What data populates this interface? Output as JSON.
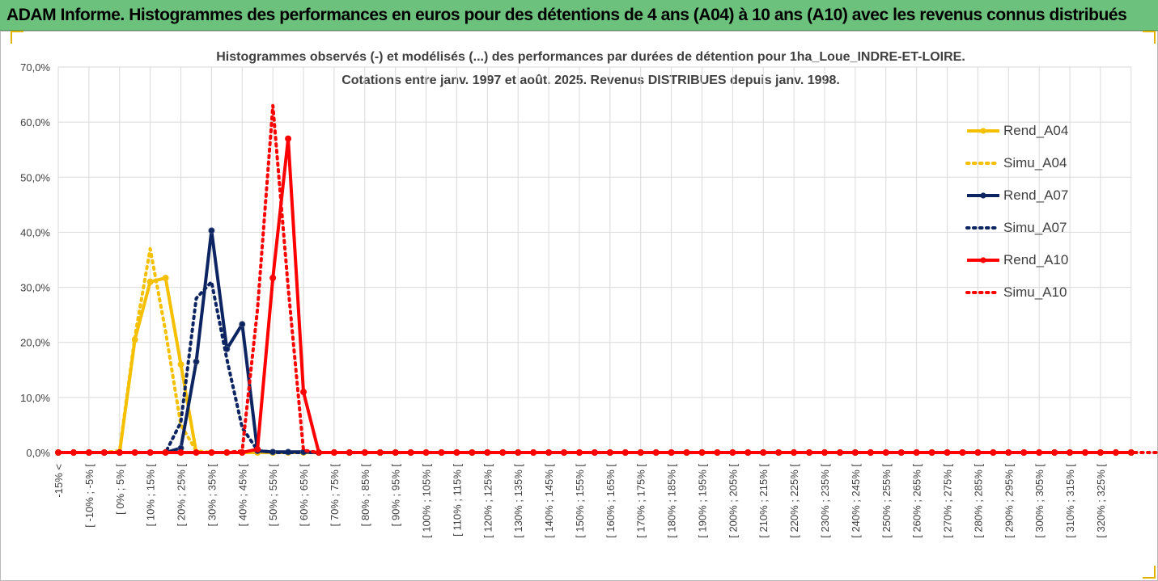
{
  "banner": {
    "title": "ADAM Informe. Histogrammes des performances en euros pour des détentions de 4 ans (A04) à 10 ans (A10) avec les revenus connus distribués"
  },
  "colors": {
    "banner_bg": "#6cc27c",
    "yellow": "#f5c000",
    "navy": "#0c2461",
    "red": "#ff0000",
    "grid": "#d9d9d9",
    "text": "#404040"
  },
  "chart_data": {
    "type": "line",
    "title_line1": "Histogrammes observés (-) et modélisés (...) des performances par durées de détention pour 1ha_Loue_INDRE-ET-LOIRE.",
    "title_line2": "Cotations entre janv. 1997 et août. 2025. Revenus DISTRIBUES depuis janv. 1998.",
    "xlabel": "",
    "ylabel": "",
    "ylim": [
      0,
      70
    ],
    "yticks": [
      "0,0%",
      "10,0%",
      "20,0%",
      "30,0%",
      "40,0%",
      "50,0%",
      "60,0%",
      "70,0%"
    ],
    "grid": true,
    "legend_position": "right",
    "x_tick_labels": [
      "-15% <",
      "[ -10% ; -5% [",
      "[ 0% ; 5% [",
      "[ 10% ; 15% [",
      "[ 20% ; 25% [",
      "[ 30% ; 35% [",
      "[ 40% ; 45% [",
      "[ 50% ; 55% [",
      "[ 60% ; 65% [",
      "[ 70% ; 75% [",
      "[ 80% ; 85% [",
      "[ 90% ; 95% [",
      "[ 100% ; 105% [",
      "[ 110% ; 115% [",
      "[ 120% ; 125% [",
      "[ 130% ; 135% [",
      "[ 140% ; 145% [",
      "[ 150% ; 155% [",
      "[ 160% ; 165% [",
      "[ 170% ; 175% [",
      "[ 180% ; 185% [",
      "[ 190% ; 195% [",
      "[ 200% ; 205% [",
      "[ 210% ; 215% [",
      "[ 220% ; 225% [",
      "[ 230% ; 235% [",
      "[ 240% ; 245% [",
      "[ 250% ; 255% [",
      "[ 260% ; 265% [",
      "[ 270% ; 275% [",
      "[ 280% ; 285% [",
      "[ 290% ; 295% [",
      "[ 300% ; 305% [",
      "[ 310% ; 315% [",
      "[ 320% ; 325% ["
    ],
    "series": [
      {
        "name": "Rend_A04",
        "color": "#f5c000",
        "dash": "solid",
        "markers": true,
        "values": [
          0,
          0,
          0,
          0,
          0,
          20.5,
          31,
          31.7,
          16,
          0,
          0,
          0,
          0,
          0,
          0,
          0,
          0,
          0,
          0,
          0,
          0,
          0,
          0,
          0,
          0,
          0,
          0,
          0,
          0,
          0,
          0,
          0,
          0,
          0,
          0,
          0,
          0,
          0,
          0,
          0,
          0,
          0,
          0,
          0,
          0,
          0,
          0,
          0,
          0,
          0,
          0,
          0,
          0,
          0,
          0,
          0,
          0,
          0,
          0,
          0,
          0,
          0,
          0,
          0,
          0,
          0,
          0,
          0,
          0,
          0,
          0
        ]
      },
      {
        "name": "Simu_A04",
        "color": "#f5c000",
        "dash": "dot",
        "markers": false,
        "values": [
          0,
          0,
          0,
          0,
          0.3,
          21,
          37,
          22,
          5,
          0.3,
          0,
          0,
          0,
          0,
          0,
          0,
          0,
          0,
          0,
          0,
          0,
          0,
          0,
          0,
          0,
          0,
          0,
          0,
          0,
          0,
          0,
          0,
          0,
          0,
          0,
          0,
          0,
          0,
          0,
          0,
          0,
          0,
          0,
          0,
          0,
          0,
          0,
          0,
          0,
          0,
          0,
          0,
          0,
          0,
          0,
          0,
          0,
          0,
          0,
          0,
          0,
          0,
          0,
          0,
          0,
          0,
          0,
          0,
          0,
          0,
          0
        ]
      },
      {
        "name": "Rend_A07",
        "color": "#0c2461",
        "dash": "solid",
        "markers": true,
        "values": [
          0,
          0,
          0,
          0,
          0,
          0,
          0,
          0,
          0.8,
          16.5,
          40.3,
          18.8,
          23.3,
          0.3,
          0.1,
          0.1,
          0.1,
          0,
          0,
          0,
          0,
          0,
          0,
          0,
          0,
          0,
          0,
          0,
          0,
          0,
          0,
          0,
          0,
          0,
          0,
          0,
          0,
          0,
          0,
          0,
          0,
          0,
          0,
          0,
          0,
          0,
          0,
          0,
          0,
          0,
          0,
          0,
          0,
          0,
          0,
          0,
          0,
          0,
          0,
          0,
          0,
          0,
          0,
          0,
          0,
          0,
          0,
          0,
          0,
          0,
          0
        ]
      },
      {
        "name": "Simu_A07",
        "color": "#0c2461",
        "dash": "dot",
        "markers": false,
        "values": [
          0,
          0,
          0,
          0,
          0,
          0,
          0,
          0,
          5.5,
          28,
          31,
          17,
          4.5,
          0.4,
          0,
          0,
          0,
          0,
          0,
          0,
          0,
          0,
          0,
          0,
          0,
          0,
          0,
          0,
          0,
          0,
          0,
          0,
          0,
          0,
          0,
          0,
          0,
          0,
          0,
          0,
          0,
          0,
          0,
          0,
          0,
          0,
          0,
          0,
          0,
          0,
          0,
          0,
          0,
          0,
          0,
          0,
          0,
          0,
          0,
          0,
          0,
          0,
          0,
          0,
          0,
          0,
          0,
          0,
          0,
          0,
          0
        ]
      },
      {
        "name": "Rend_A10",
        "color": "#ff0000",
        "dash": "solid",
        "markers": true,
        "values": [
          0,
          0,
          0,
          0,
          0,
          0,
          0,
          0,
          0,
          0,
          0,
          0,
          0,
          0.6,
          31.7,
          57,
          11,
          0,
          0,
          0,
          0,
          0,
          0,
          0,
          0,
          0,
          0,
          0,
          0,
          0,
          0,
          0,
          0,
          0,
          0,
          0,
          0,
          0,
          0,
          0,
          0,
          0,
          0,
          0,
          0,
          0,
          0,
          0,
          0,
          0,
          0,
          0,
          0,
          0,
          0,
          0,
          0,
          0,
          0,
          0,
          0,
          0,
          0,
          0,
          0,
          0,
          0,
          0,
          0,
          0,
          0
        ]
      },
      {
        "name": "Simu_A10",
        "color": "#ff0000",
        "dash": "dot",
        "markers": false,
        "values": [
          0,
          0,
          0,
          0,
          0,
          0,
          0,
          0,
          0,
          0,
          0,
          0,
          0.3,
          26,
          63,
          30,
          0.4,
          0,
          0,
          0,
          0,
          0,
          0,
          0,
          0,
          0,
          0,
          0,
          0,
          0,
          0,
          0,
          0,
          0,
          0,
          0,
          0,
          0,
          0,
          0,
          0,
          0,
          0,
          0,
          0,
          0,
          0,
          0,
          0,
          0,
          0,
          0,
          0,
          0,
          0,
          0,
          0,
          0,
          0,
          0,
          0,
          0,
          0,
          0,
          0,
          0,
          0,
          0,
          0,
          0,
          0,
          0,
          0
        ]
      }
    ]
  }
}
